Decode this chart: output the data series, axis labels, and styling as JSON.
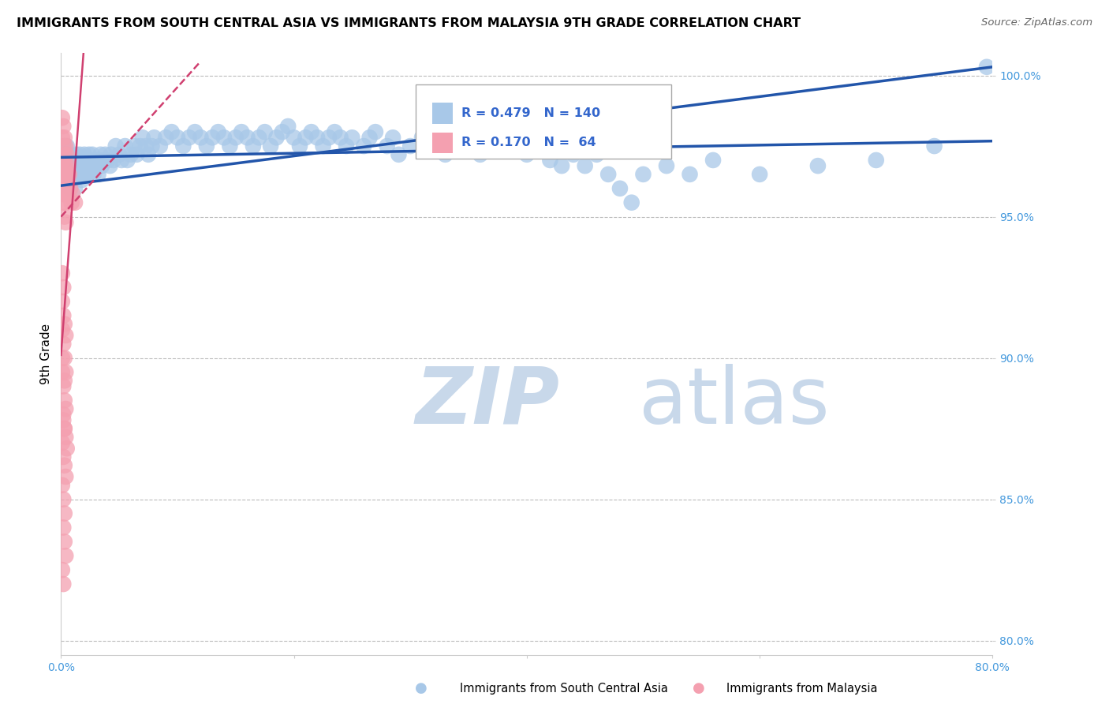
{
  "title": "IMMIGRANTS FROM SOUTH CENTRAL ASIA VS IMMIGRANTS FROM MALAYSIA 9TH GRADE CORRELATION CHART",
  "source": "Source: ZipAtlas.com",
  "xlabel_blue": "Immigrants from South Central Asia",
  "xlabel_pink": "Immigrants from Malaysia",
  "ylabel": "9th Grade",
  "xlim": [
    0.0,
    0.8
  ],
  "ylim": [
    0.795,
    1.008
  ],
  "xtick_labels": [
    "0.0%",
    "",
    "",
    "",
    "80.0%"
  ],
  "ytick_labels": [
    "80.0%",
    "85.0%",
    "90.0%",
    "95.0%",
    "100.0%"
  ],
  "yticks": [
    0.8,
    0.85,
    0.9,
    0.95,
    1.0
  ],
  "legend_blue_r": "R = 0.479",
  "legend_blue_n": "N = 140",
  "legend_pink_r": "R = 0.170",
  "legend_pink_n": "N =  64",
  "blue_color": "#a8c8e8",
  "blue_line_color": "#2255aa",
  "pink_color": "#f4a0b0",
  "pink_line_color": "#d04070",
  "watermark_zip": "ZIP",
  "watermark_atlas": "atlas",
  "watermark_color": "#c8d8ea",
  "blue_scatter": [
    [
      0.002,
      0.972
    ],
    [
      0.003,
      0.968
    ],
    [
      0.003,
      0.975
    ],
    [
      0.004,
      0.965
    ],
    [
      0.004,
      0.97
    ],
    [
      0.005,
      0.968
    ],
    [
      0.005,
      0.963
    ],
    [
      0.005,
      0.975
    ],
    [
      0.006,
      0.97
    ],
    [
      0.006,
      0.965
    ],
    [
      0.007,
      0.968
    ],
    [
      0.007,
      0.972
    ],
    [
      0.008,
      0.965
    ],
    [
      0.008,
      0.97
    ],
    [
      0.008,
      0.96
    ],
    [
      0.009,
      0.968
    ],
    [
      0.009,
      0.963
    ],
    [
      0.01,
      0.965
    ],
    [
      0.01,
      0.97
    ],
    [
      0.011,
      0.968
    ],
    [
      0.012,
      0.965
    ],
    [
      0.012,
      0.96
    ],
    [
      0.013,
      0.968
    ],
    [
      0.013,
      0.972
    ],
    [
      0.014,
      0.965
    ],
    [
      0.015,
      0.97
    ],
    [
      0.015,
      0.968
    ],
    [
      0.016,
      0.965
    ],
    [
      0.016,
      0.972
    ],
    [
      0.017,
      0.968
    ],
    [
      0.018,
      0.963
    ],
    [
      0.018,
      0.97
    ],
    [
      0.019,
      0.968
    ],
    [
      0.02,
      0.965
    ],
    [
      0.02,
      0.972
    ],
    [
      0.021,
      0.968
    ],
    [
      0.022,
      0.97
    ],
    [
      0.022,
      0.965
    ],
    [
      0.023,
      0.968
    ],
    [
      0.024,
      0.972
    ],
    [
      0.025,
      0.965
    ],
    [
      0.025,
      0.97
    ],
    [
      0.026,
      0.968
    ],
    [
      0.027,
      0.972
    ],
    [
      0.028,
      0.965
    ],
    [
      0.03,
      0.97
    ],
    [
      0.03,
      0.968
    ],
    [
      0.032,
      0.965
    ],
    [
      0.033,
      0.97
    ],
    [
      0.034,
      0.972
    ],
    [
      0.035,
      0.968
    ],
    [
      0.037,
      0.97
    ],
    [
      0.038,
      0.972
    ],
    [
      0.04,
      0.97
    ],
    [
      0.042,
      0.968
    ],
    [
      0.043,
      0.972
    ],
    [
      0.045,
      0.97
    ],
    [
      0.047,
      0.975
    ],
    [
      0.05,
      0.972
    ],
    [
      0.052,
      0.97
    ],
    [
      0.055,
      0.975
    ],
    [
      0.057,
      0.97
    ],
    [
      0.06,
      0.972
    ],
    [
      0.063,
      0.975
    ],
    [
      0.065,
      0.972
    ],
    [
      0.068,
      0.975
    ],
    [
      0.07,
      0.978
    ],
    [
      0.073,
      0.975
    ],
    [
      0.075,
      0.972
    ],
    [
      0.078,
      0.975
    ],
    [
      0.08,
      0.978
    ],
    [
      0.085,
      0.975
    ],
    [
      0.09,
      0.978
    ],
    [
      0.095,
      0.98
    ],
    [
      0.1,
      0.978
    ],
    [
      0.105,
      0.975
    ],
    [
      0.11,
      0.978
    ],
    [
      0.115,
      0.98
    ],
    [
      0.12,
      0.978
    ],
    [
      0.125,
      0.975
    ],
    [
      0.13,
      0.978
    ],
    [
      0.135,
      0.98
    ],
    [
      0.14,
      0.978
    ],
    [
      0.145,
      0.975
    ],
    [
      0.15,
      0.978
    ],
    [
      0.155,
      0.98
    ],
    [
      0.16,
      0.978
    ],
    [
      0.165,
      0.975
    ],
    [
      0.17,
      0.978
    ],
    [
      0.175,
      0.98
    ],
    [
      0.18,
      0.975
    ],
    [
      0.185,
      0.978
    ],
    [
      0.19,
      0.98
    ],
    [
      0.195,
      0.982
    ],
    [
      0.2,
      0.978
    ],
    [
      0.205,
      0.975
    ],
    [
      0.21,
      0.978
    ],
    [
      0.215,
      0.98
    ],
    [
      0.22,
      0.978
    ],
    [
      0.225,
      0.975
    ],
    [
      0.23,
      0.978
    ],
    [
      0.235,
      0.98
    ],
    [
      0.24,
      0.978
    ],
    [
      0.245,
      0.975
    ],
    [
      0.25,
      0.978
    ],
    [
      0.26,
      0.975
    ],
    [
      0.265,
      0.978
    ],
    [
      0.27,
      0.98
    ],
    [
      0.28,
      0.975
    ],
    [
      0.285,
      0.978
    ],
    [
      0.29,
      0.972
    ],
    [
      0.3,
      0.975
    ],
    [
      0.31,
      0.978
    ],
    [
      0.32,
      0.975
    ],
    [
      0.33,
      0.972
    ],
    [
      0.34,
      0.978
    ],
    [
      0.35,
      0.975
    ],
    [
      0.36,
      0.972
    ],
    [
      0.37,
      0.975
    ],
    [
      0.38,
      0.978
    ],
    [
      0.39,
      0.975
    ],
    [
      0.4,
      0.972
    ],
    [
      0.41,
      0.975
    ],
    [
      0.42,
      0.97
    ],
    [
      0.43,
      0.968
    ],
    [
      0.44,
      0.972
    ],
    [
      0.45,
      0.968
    ],
    [
      0.46,
      0.972
    ],
    [
      0.47,
      0.965
    ],
    [
      0.48,
      0.96
    ],
    [
      0.49,
      0.955
    ],
    [
      0.5,
      0.965
    ],
    [
      0.52,
      0.968
    ],
    [
      0.54,
      0.965
    ],
    [
      0.56,
      0.97
    ],
    [
      0.6,
      0.965
    ],
    [
      0.65,
      0.968
    ],
    [
      0.7,
      0.97
    ],
    [
      0.75,
      0.975
    ],
    [
      0.795,
      1.003
    ]
  ],
  "pink_scatter": [
    [
      0.001,
      0.985
    ],
    [
      0.001,
      0.978
    ],
    [
      0.001,
      0.97
    ],
    [
      0.001,
      0.965
    ],
    [
      0.001,
      0.958
    ],
    [
      0.002,
      0.982
    ],
    [
      0.002,
      0.975
    ],
    [
      0.002,
      0.968
    ],
    [
      0.002,
      0.96
    ],
    [
      0.002,
      0.955
    ],
    [
      0.003,
      0.978
    ],
    [
      0.003,
      0.972
    ],
    [
      0.003,
      0.965
    ],
    [
      0.003,
      0.958
    ],
    [
      0.003,
      0.95
    ],
    [
      0.004,
      0.975
    ],
    [
      0.004,
      0.968
    ],
    [
      0.004,
      0.962
    ],
    [
      0.004,
      0.955
    ],
    [
      0.004,
      0.948
    ],
    [
      0.005,
      0.972
    ],
    [
      0.005,
      0.965
    ],
    [
      0.005,
      0.958
    ],
    [
      0.006,
      0.968
    ],
    [
      0.006,
      0.962
    ],
    [
      0.007,
      0.965
    ],
    [
      0.008,
      0.96
    ],
    [
      0.009,
      0.955
    ],
    [
      0.01,
      0.958
    ],
    [
      0.012,
      0.955
    ],
    [
      0.001,
      0.92
    ],
    [
      0.002,
      0.915
    ],
    [
      0.003,
      0.912
    ],
    [
      0.004,
      0.908
    ],
    [
      0.001,
      0.91
    ],
    [
      0.002,
      0.905
    ],
    [
      0.003,
      0.9
    ],
    [
      0.004,
      0.895
    ],
    [
      0.001,
      0.895
    ],
    [
      0.002,
      0.89
    ],
    [
      0.003,
      0.885
    ],
    [
      0.004,
      0.882
    ],
    [
      0.002,
      0.878
    ],
    [
      0.003,
      0.875
    ],
    [
      0.004,
      0.872
    ],
    [
      0.005,
      0.868
    ],
    [
      0.001,
      0.87
    ],
    [
      0.002,
      0.865
    ],
    [
      0.003,
      0.862
    ],
    [
      0.004,
      0.858
    ],
    [
      0.001,
      0.855
    ],
    [
      0.002,
      0.85
    ],
    [
      0.003,
      0.845
    ],
    [
      0.002,
      0.84
    ],
    [
      0.003,
      0.835
    ],
    [
      0.004,
      0.83
    ],
    [
      0.001,
      0.825
    ],
    [
      0.002,
      0.82
    ],
    [
      0.002,
      0.88
    ],
    [
      0.003,
      0.875
    ],
    [
      0.001,
      0.9
    ],
    [
      0.003,
      0.892
    ],
    [
      0.001,
      0.93
    ],
    [
      0.002,
      0.925
    ]
  ]
}
